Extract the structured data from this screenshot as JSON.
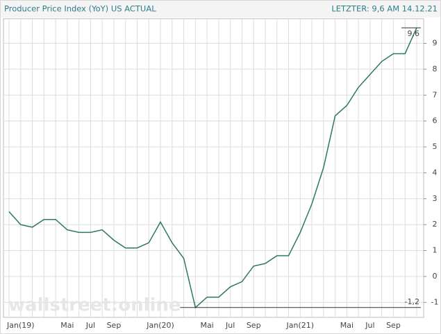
{
  "chart_data": {
    "type": "line",
    "title": "Producer Price Index (YoY) US ACTUAL",
    "subtitle": "LETZTER: 9,6 AM 14.12.21",
    "watermark": "wallstreet:online",
    "categories": [
      null,
      "Jan(19)",
      null,
      null,
      null,
      "Mai",
      null,
      "Jul",
      null,
      "Sep",
      null,
      null,
      null,
      "Jan(20)",
      null,
      null,
      null,
      "Mai",
      null,
      "Jul",
      null,
      "Sep",
      null,
      null,
      null,
      "Jan(21)",
      null,
      null,
      null,
      "Mai",
      null,
      "Jul",
      null,
      "Sep",
      null,
      null
    ],
    "series": [
      {
        "name": "Producer Price Index (YoY) US",
        "color": "#2b7a5a",
        "values": [
          2.5,
          2.0,
          1.9,
          2.2,
          2.2,
          1.8,
          1.7,
          1.7,
          1.8,
          1.4,
          1.1,
          1.1,
          1.3,
          2.1,
          1.3,
          0.7,
          -1.2,
          -0.8,
          -0.8,
          -0.4,
          -0.2,
          0.4,
          0.5,
          0.8,
          0.8,
          1.7,
          2.8,
          4.2,
          6.2,
          6.6,
          7.3,
          7.8,
          8.3,
          8.6,
          8.6,
          9.6
        ]
      }
    ],
    "annotations": [
      {
        "value": 9.6,
        "label": "9,6"
      },
      {
        "value": -1.2,
        "label": "-1,2"
      }
    ],
    "ylim": [
      -1.58,
      9.95
    ],
    "yticks": [
      -1,
      0,
      1,
      2,
      3,
      4,
      5,
      6,
      7,
      8,
      9
    ],
    "grid": true
  }
}
